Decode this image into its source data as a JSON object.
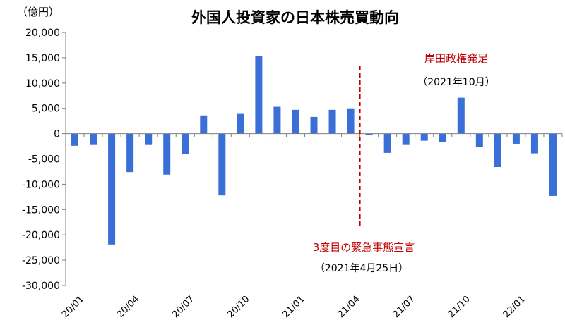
{
  "chart_data": {
    "type": "bar",
    "title": "外国人投資家の日本株売買動向",
    "ylabel": "（億円）",
    "xlabel": "",
    "ylim": [
      -30000,
      20000
    ],
    "yticks": [
      20000,
      15000,
      10000,
      5000,
      0,
      -5000,
      -10000,
      -15000,
      -20000,
      -25000,
      -30000
    ],
    "ytick_labels": [
      "20,000",
      "15,000",
      "10,000",
      "5,000",
      "0",
      "-5,000",
      "-10,000",
      "-15,000",
      "-20,000",
      "-25,000",
      "-30,000"
    ],
    "categories": [
      "20/01",
      "20/02",
      "20/03",
      "20/04",
      "20/05",
      "20/06",
      "20/07",
      "20/08",
      "20/09",
      "20/10",
      "20/11",
      "20/12",
      "21/01",
      "21/02",
      "21/03",
      "21/04",
      "21/05",
      "21/06",
      "21/07",
      "21/08",
      "21/09",
      "21/10",
      "21/11",
      "21/12",
      "22/01",
      "22/02",
      "22/03"
    ],
    "xtick_labels": [
      "20/01",
      "20/04",
      "20/07",
      "20/10",
      "21/01",
      "21/04",
      "21/07",
      "21/10",
      "22/01"
    ],
    "values": [
      -2400,
      -2100,
      -21900,
      -7600,
      -2100,
      -8100,
      -4000,
      3600,
      -12200,
      3900,
      15300,
      5300,
      4700,
      3300,
      4700,
      5000,
      -200,
      -3800,
      -2100,
      -1400,
      -1600,
      7100,
      -2600,
      -6600,
      -2000,
      -3900,
      -12300
    ],
    "series_color": "#3a6fd8",
    "grid": false,
    "annotations": {
      "emergency_label": "3度目の緊急事態宣言",
      "emergency_date": "（2021年4月25日）",
      "kishida_label": "岸田政権発足",
      "kishida_date": "（2021年10月）"
    },
    "marker": {
      "between": [
        "21/04",
        "21/05"
      ],
      "color": "#c00000",
      "style": "dashed"
    }
  }
}
